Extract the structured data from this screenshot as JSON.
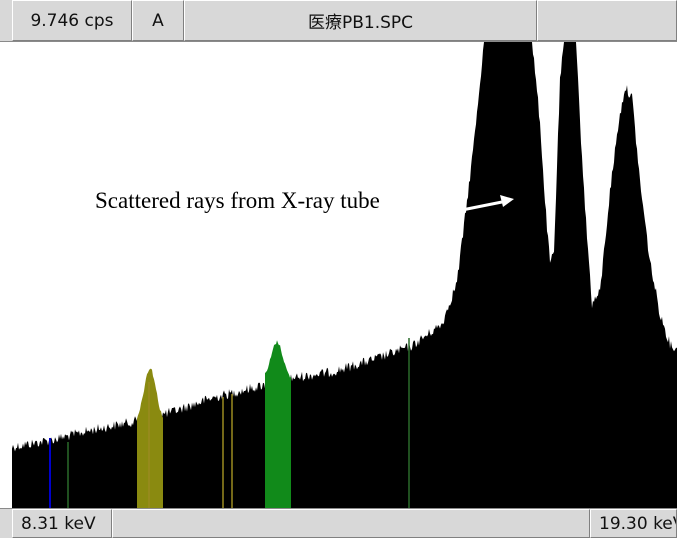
{
  "toolbar": {
    "count_rate": "9.746 cps",
    "mode": "A",
    "filename": "医療PB1.SPC",
    "extra": ""
  },
  "status_bar": {
    "energy_start": "8.31 keV",
    "energy_end": "19.30 keV"
  },
  "annotation": {
    "text": "Scattered rays from X-ray tube"
  },
  "colors": {
    "spectrum": "#000000",
    "peak_yellow": "#8a8a10",
    "peak_green": "#118a1a",
    "marker_blue": "#0000cc",
    "marker_green": "#2a6a2a",
    "marker_yellow": "#9a8a20",
    "panel": "#d8d8d8"
  },
  "icons": {
    "annotation_arrow": "arrow-icon"
  }
}
